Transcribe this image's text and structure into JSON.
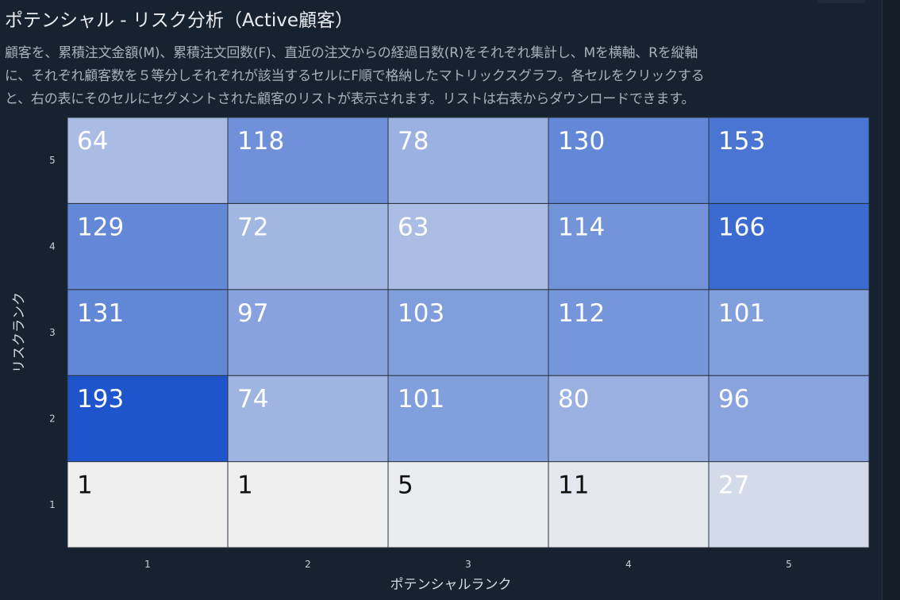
{
  "title": "ポテンシャル - リスク分析（Active顧客）",
  "description": [
    "顧客を、累積注文金額(M)、累積注文回数(F)、直近の注文からの経過日数(R)をそれぞれ集計し、Mを横軸、Rを縦軸",
    "に、それぞれ顧客数を５等分しそれぞれが該当するセルにF順で格納したマトリックスグラフ。各セルをクリックする",
    "と、右の表にそのセルにセグメントされた顧客のリストが表示されます。リストは右表からダウンロードできます。"
  ],
  "chart_data": {
    "type": "heatmap",
    "xlabel": "ポテンシャルランク",
    "ylabel": "リスクランク",
    "x_categories": [
      "1",
      "2",
      "3",
      "4",
      "5"
    ],
    "y_categories": [
      "1",
      "2",
      "3",
      "4",
      "5"
    ],
    "values": [
      [
        1,
        1,
        5,
        11,
        27
      ],
      [
        193,
        74,
        101,
        80,
        96
      ],
      [
        131,
        97,
        103,
        112,
        101
      ],
      [
        129,
        72,
        63,
        114,
        166
      ],
      [
        64,
        118,
        78,
        130,
        153
      ]
    ],
    "value_min": 1,
    "value_max": 193,
    "color_low": "#efefef",
    "color_high": "#1e55cc",
    "label_color_light": "#ffffff",
    "label_color_dark": "#111111",
    "gridline_color": "#2b3440"
  }
}
